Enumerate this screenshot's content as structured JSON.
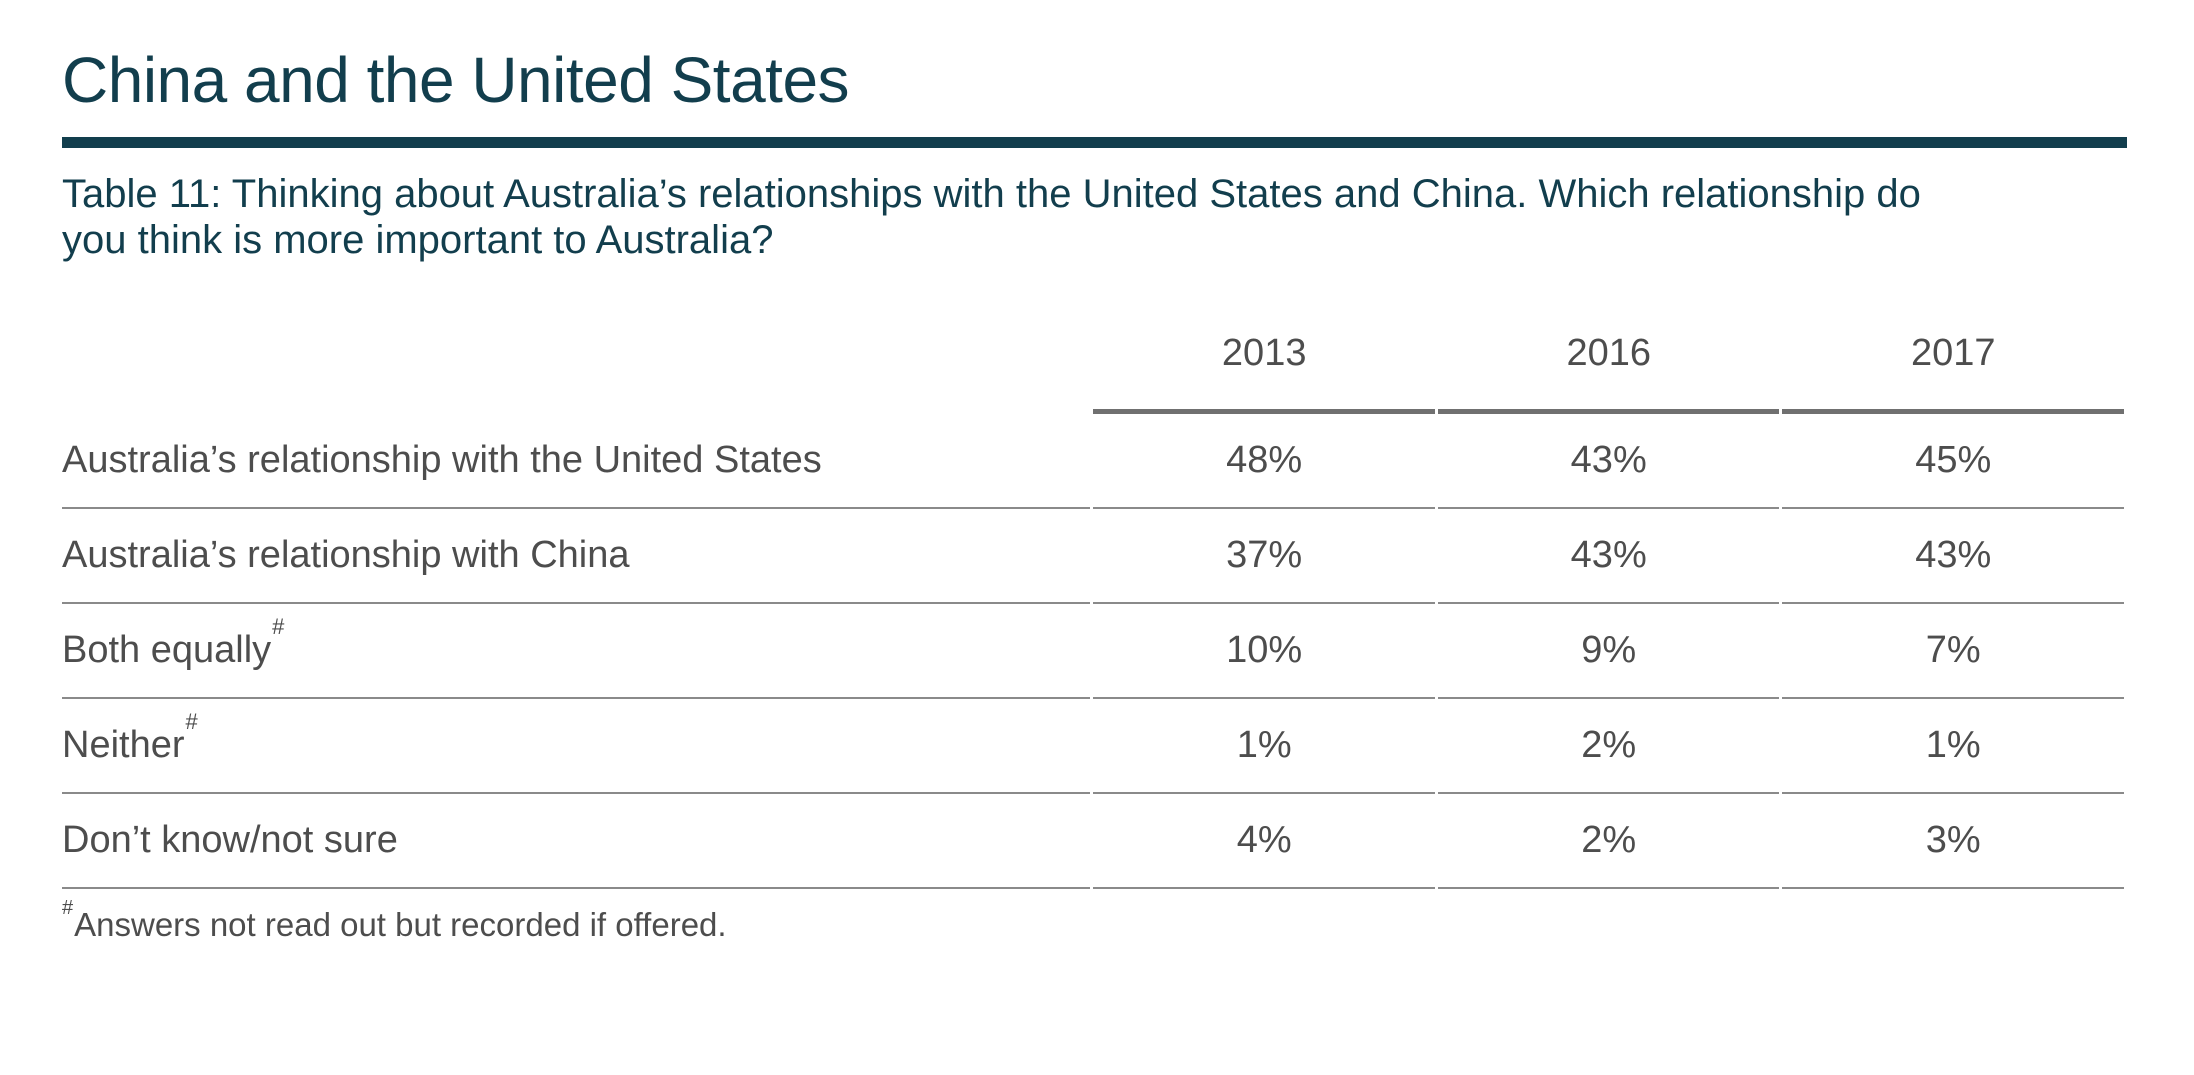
{
  "page": {
    "title": "China and the United States",
    "question_lines": [
      "Table 11: Thinking about Australia’s relationships with the United States and China. Which relationship do",
      "you think is more important to Australia?"
    ],
    "footnote": {
      "marker": "#",
      "text": "Answers not read out but recorded if offered."
    }
  },
  "chart_data": {
    "type": "table",
    "title": "Table 11: Thinking about Australia’s relationships with the United States and China. Which relationship do you think is more important to Australia?",
    "columns": [
      "2013",
      "2016",
      "2017"
    ],
    "rows": [
      {
        "label": "Australia’s relationship with the United States",
        "marker": "",
        "values": [
          "48%",
          "43%",
          "45%"
        ]
      },
      {
        "label": "Australia’s relationship with China",
        "marker": "",
        "values": [
          "37%",
          "43%",
          "43%"
        ]
      },
      {
        "label": "Both equally",
        "marker": "#",
        "values": [
          "10%",
          "9%",
          "7%"
        ]
      },
      {
        "label": "Neither",
        "marker": "#",
        "values": [
          "1%",
          "2%",
          "1%"
        ]
      },
      {
        "label": "Don’t know/not sure",
        "marker": "",
        "values": [
          "4%",
          "2%",
          "3%"
        ]
      }
    ],
    "footnote": "#Answers not read out but recorded if offered."
  },
  "colors": {
    "teal": "#123E4D",
    "text_gray": "#4D4D4D",
    "row_divider": "#8A8A8A",
    "header_divider": "#707070"
  }
}
